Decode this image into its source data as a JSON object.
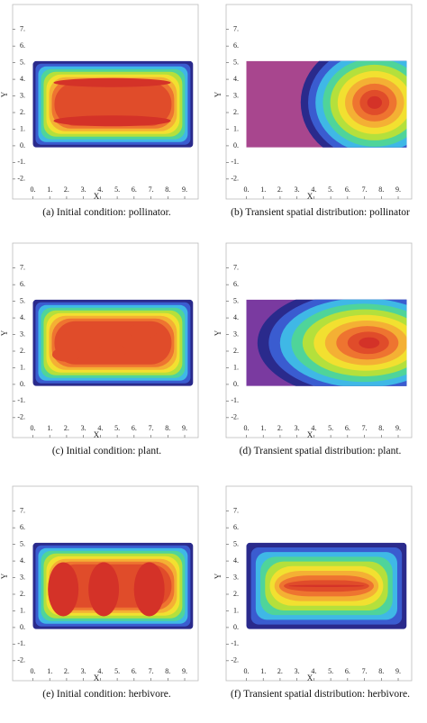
{
  "chart_data": [
    {
      "type": "contour",
      "caption": "(a) Initial condition: pollinator.",
      "xlabel": "X",
      "ylabel": "Y",
      "xlim": [
        -1.2,
        9.8
      ],
      "ylim": [
        -3.2,
        8.5
      ],
      "xticks": [
        {
          "value": 0,
          "label": "0."
        },
        {
          "value": 1,
          "label": "1."
        },
        {
          "value": 2,
          "label": "2."
        },
        {
          "value": 3,
          "label": "3."
        },
        {
          "value": 4,
          "label": "4."
        },
        {
          "value": 5,
          "label": "5."
        },
        {
          "value": 6,
          "label": "6."
        },
        {
          "value": 7,
          "label": "7."
        },
        {
          "value": 8,
          "label": "8."
        },
        {
          "value": 9,
          "label": "9."
        }
      ],
      "yticks": [
        {
          "value": -2,
          "label": "-2."
        },
        {
          "value": -1,
          "label": "-1."
        },
        {
          "value": 0,
          "label": "0."
        },
        {
          "value": 1,
          "label": "1."
        },
        {
          "value": 2,
          "label": "2."
        },
        {
          "value": 3,
          "label": "3."
        },
        {
          "value": 4,
          "label": "4."
        },
        {
          "value": 5,
          "label": "5."
        },
        {
          "value": 6,
          "label": "6."
        },
        {
          "value": 7,
          "label": "7."
        }
      ]
    },
    {
      "type": "contour",
      "caption": "(b) Transient spatial distribution: pollinator",
      "xlabel": "X",
      "ylabel": "Y",
      "xlim": [
        -1.2,
        9.8
      ],
      "ylim": [
        -3.2,
        8.5
      ],
      "xticks": [
        {
          "value": 0,
          "label": "0."
        },
        {
          "value": 1,
          "label": "1."
        },
        {
          "value": 2,
          "label": "2."
        },
        {
          "value": 3,
          "label": "3."
        },
        {
          "value": 4,
          "label": "4."
        },
        {
          "value": 5,
          "label": "5."
        },
        {
          "value": 6,
          "label": "6."
        },
        {
          "value": 7,
          "label": "7."
        },
        {
          "value": 8,
          "label": "8."
        },
        {
          "value": 9,
          "label": "9."
        }
      ],
      "yticks": [
        {
          "value": -2,
          "label": "-2."
        },
        {
          "value": -1,
          "label": "-1."
        },
        {
          "value": 0,
          "label": "0."
        },
        {
          "value": 1,
          "label": "1."
        },
        {
          "value": 2,
          "label": "2."
        },
        {
          "value": 3,
          "label": "3."
        },
        {
          "value": 4,
          "label": "4."
        },
        {
          "value": 5,
          "label": "5."
        },
        {
          "value": 6,
          "label": "6."
        },
        {
          "value": 7,
          "label": "7."
        }
      ]
    },
    {
      "type": "contour",
      "caption": "(c) Initial condition: plant.",
      "xlabel": "X",
      "ylabel": "Y",
      "xlim": [
        -1.2,
        9.8
      ],
      "ylim": [
        -3.2,
        8.5
      ],
      "xticks": [
        {
          "value": 0,
          "label": "0."
        },
        {
          "value": 1,
          "label": "1."
        },
        {
          "value": 2,
          "label": "2."
        },
        {
          "value": 3,
          "label": "3."
        },
        {
          "value": 4,
          "label": "4."
        },
        {
          "value": 5,
          "label": "5."
        },
        {
          "value": 6,
          "label": "6."
        },
        {
          "value": 7,
          "label": "7."
        },
        {
          "value": 8,
          "label": "8."
        },
        {
          "value": 9,
          "label": "9."
        }
      ],
      "yticks": [
        {
          "value": -2,
          "label": "-2."
        },
        {
          "value": -1,
          "label": "-1."
        },
        {
          "value": 0,
          "label": "0."
        },
        {
          "value": 1,
          "label": "1."
        },
        {
          "value": 2,
          "label": "2."
        },
        {
          "value": 3,
          "label": "3."
        },
        {
          "value": 4,
          "label": "4."
        },
        {
          "value": 5,
          "label": "5."
        },
        {
          "value": 6,
          "label": "6."
        },
        {
          "value": 7,
          "label": "7."
        }
      ]
    },
    {
      "type": "contour",
      "caption": "(d) Transient spatial distribution: plant.",
      "xlabel": "X",
      "ylabel": "Y",
      "xlim": [
        -1.2,
        9.8
      ],
      "ylim": [
        -3.2,
        8.5
      ],
      "xticks": [
        {
          "value": 0,
          "label": "0."
        },
        {
          "value": 1,
          "label": "1."
        },
        {
          "value": 2,
          "label": "2."
        },
        {
          "value": 3,
          "label": "3."
        },
        {
          "value": 4,
          "label": "4."
        },
        {
          "value": 5,
          "label": "5."
        },
        {
          "value": 6,
          "label": "6."
        },
        {
          "value": 7,
          "label": "7."
        },
        {
          "value": 8,
          "label": "8."
        },
        {
          "value": 9,
          "label": "9."
        }
      ],
      "yticks": [
        {
          "value": -2,
          "label": "-2."
        },
        {
          "value": -1,
          "label": "-1."
        },
        {
          "value": 0,
          "label": "0."
        },
        {
          "value": 1,
          "label": "1."
        },
        {
          "value": 2,
          "label": "2."
        },
        {
          "value": 3,
          "label": "3."
        },
        {
          "value": 4,
          "label": "4."
        },
        {
          "value": 5,
          "label": "5."
        },
        {
          "value": 6,
          "label": "6."
        },
        {
          "value": 7,
          "label": "7."
        }
      ]
    },
    {
      "type": "contour",
      "caption": "(e) Initial condition: herbivore.",
      "xlabel": "X",
      "ylabel": "Y",
      "xlim": [
        -1.2,
        9.8
      ],
      "ylim": [
        -3.2,
        8.5
      ],
      "xticks": [
        {
          "value": 0,
          "label": "0."
        },
        {
          "value": 1,
          "label": "1."
        },
        {
          "value": 2,
          "label": "2."
        },
        {
          "value": 3,
          "label": "3."
        },
        {
          "value": 4,
          "label": "4."
        },
        {
          "value": 5,
          "label": "5."
        },
        {
          "value": 6,
          "label": "6."
        },
        {
          "value": 7,
          "label": "7."
        },
        {
          "value": 8,
          "label": "8."
        },
        {
          "value": 9,
          "label": "9."
        }
      ],
      "yticks": [
        {
          "value": -2,
          "label": "-2."
        },
        {
          "value": -1,
          "label": "-1."
        },
        {
          "value": 0,
          "label": "0."
        },
        {
          "value": 1,
          "label": "1."
        },
        {
          "value": 2,
          "label": "2."
        },
        {
          "value": 3,
          "label": "3."
        },
        {
          "value": 4,
          "label": "4."
        },
        {
          "value": 5,
          "label": "5."
        },
        {
          "value": 6,
          "label": "6."
        },
        {
          "value": 7,
          "label": "7."
        }
      ]
    },
    {
      "type": "contour",
      "caption": "(f) Transient spatial distribution: herbivore.",
      "xlabel": "X",
      "ylabel": "Y",
      "xlim": [
        -1.2,
        9.8
      ],
      "ylim": [
        -3.2,
        8.5
      ],
      "xticks": [
        {
          "value": 0,
          "label": "0."
        },
        {
          "value": 1,
          "label": "1."
        },
        {
          "value": 2,
          "label": "2."
        },
        {
          "value": 3,
          "label": "3."
        },
        {
          "value": 4,
          "label": "4."
        },
        {
          "value": 5,
          "label": "5."
        },
        {
          "value": 6,
          "label": "6."
        },
        {
          "value": 7,
          "label": "7."
        },
        {
          "value": 8,
          "label": "8."
        },
        {
          "value": 9,
          "label": "9."
        }
      ],
      "yticks": [
        {
          "value": -2,
          "label": "-2."
        },
        {
          "value": -1,
          "label": "-1."
        },
        {
          "value": 0,
          "label": "0."
        },
        {
          "value": 1,
          "label": "1."
        },
        {
          "value": 2,
          "label": "2."
        },
        {
          "value": 3,
          "label": "3."
        },
        {
          "value": 4,
          "label": "4."
        },
        {
          "value": 5,
          "label": "5."
        },
        {
          "value": 6,
          "label": "6."
        },
        {
          "value": 7,
          "label": "7."
        }
      ]
    }
  ]
}
